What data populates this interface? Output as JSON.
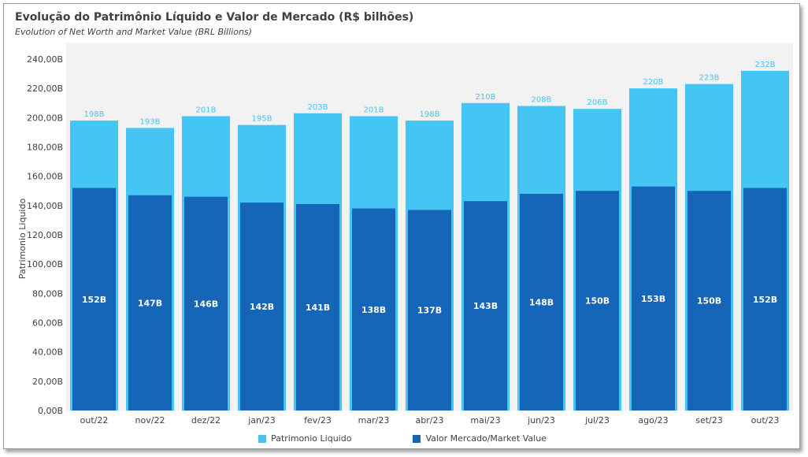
{
  "title": "Evolução do Patrimônio Líquido e Valor de Mercado (R$ bilhões)",
  "subtitle": "Evolution of Net Worth and Market Value (BRL Billions)",
  "colors": {
    "patrimonio": "#45C5F3",
    "valor_mercado": "#1565B8",
    "axis_text": "#404040",
    "plot_bg": "#F2F2F2"
  },
  "chart_data": {
    "type": "bar",
    "categories": [
      "out/22",
      "nov/22",
      "dez/22",
      "jan/23",
      "fev/23",
      "mar/23",
      "abr/23",
      "mai/23",
      "jun/23",
      "jul/23",
      "ago/23",
      "set/23",
      "out/23"
    ],
    "series": [
      {
        "name": "Patrimonio Liquido",
        "values": [
          198,
          193,
          201,
          195,
          203,
          201,
          198,
          210,
          208,
          206,
          220,
          223,
          232
        ],
        "labels": [
          "198B",
          "193B",
          "201B",
          "195B",
          "203B",
          "201B",
          "198B",
          "210B",
          "208B",
          "206B",
          "220B",
          "223B",
          "232B"
        ]
      },
      {
        "name": "Valor Mercado/Market Value",
        "values": [
          152,
          147,
          146,
          142,
          141,
          138,
          137,
          143,
          148,
          150,
          153,
          150,
          152
        ],
        "labels": [
          "152B",
          "147B",
          "146B",
          "142B",
          "141B",
          "138B",
          "137B",
          "143B",
          "148B",
          "150B",
          "153B",
          "150B",
          "152B"
        ]
      }
    ],
    "yticks": [
      "0,00B",
      "20,00B",
      "40,00B",
      "60,00B",
      "80,00B",
      "100,00B",
      "120,00B",
      "140,00B",
      "160,00B",
      "180,00B",
      "200,00B",
      "220,00B",
      "240,00B"
    ],
    "ylabel": "Patrimonio Liquido",
    "ylim": [
      0,
      240
    ],
    "grid": false,
    "legend_position": "bottom"
  }
}
